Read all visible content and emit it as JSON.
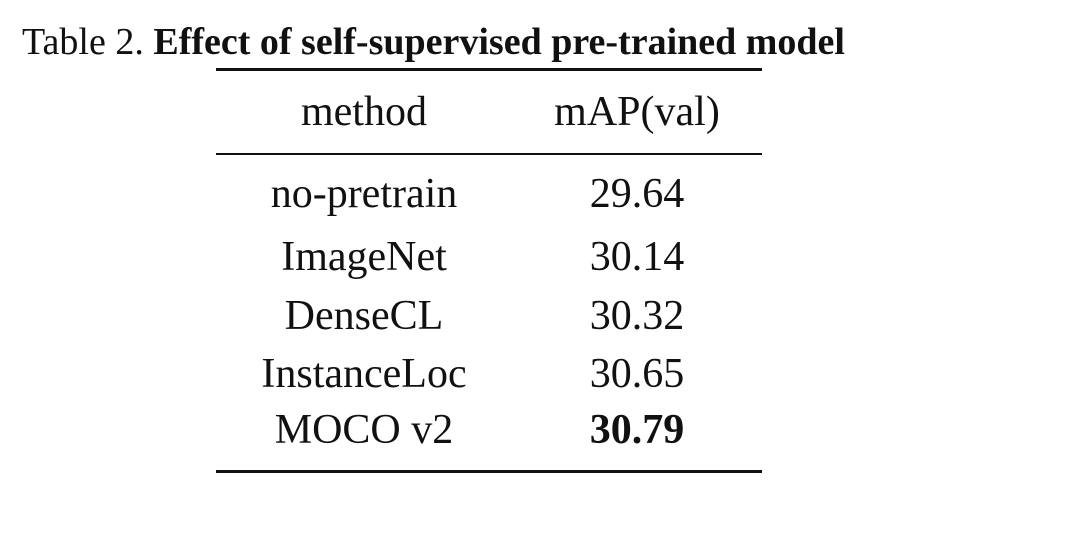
{
  "caption": {
    "label": "Table 2.",
    "title": "Effect of self-supervised pre-trained model"
  },
  "table": {
    "headers": {
      "method": "method",
      "map": "mAP(val)"
    },
    "rows": [
      {
        "method": "no-pretrain",
        "map": "29.64"
      },
      {
        "method": "ImageNet",
        "map": "30.14"
      },
      {
        "method": "DenseCL",
        "map": "30.32"
      },
      {
        "method": "InstanceLoc",
        "map": "30.65"
      },
      {
        "method": "MOCO v2",
        "map": "30.79",
        "best": true
      }
    ]
  }
}
